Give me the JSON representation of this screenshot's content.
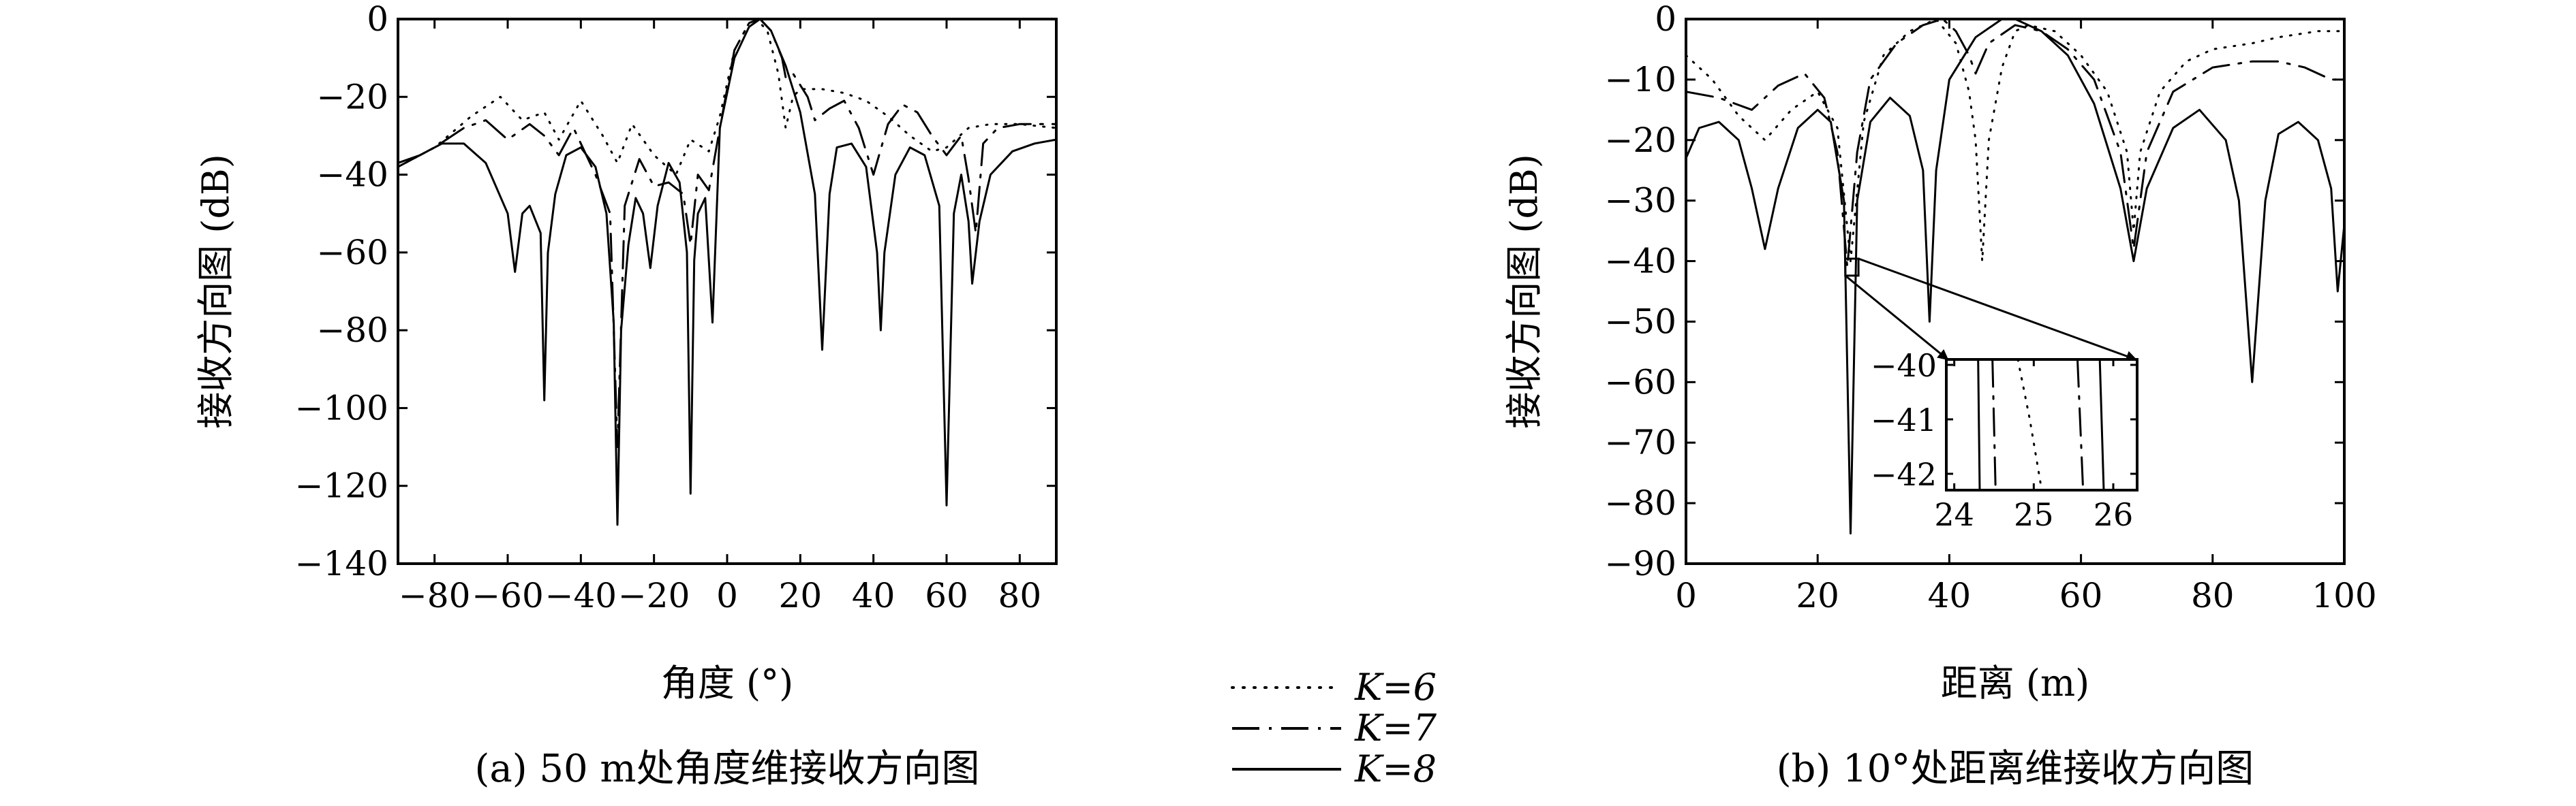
{
  "figure": {
    "captions": [
      "(a) 50 m处角度维接收方向图",
      "(b) 10°处距离维接收方向图"
    ]
  },
  "legend": [
    {
      "label": "K=6",
      "style": "dotted"
    },
    {
      "label": "K=7",
      "style": "dashdot"
    },
    {
      "label": "K=8",
      "style": "solid"
    }
  ],
  "chart_data": [
    {
      "type": "line",
      "caption": "(a) 50 m处角度维接收方向图",
      "xlabel": "角度 (°)",
      "ylabel": "接收方向图 (dB)",
      "xlim": [
        -90,
        90
      ],
      "ylim": [
        -140,
        0
      ],
      "xticks": [
        -80,
        -60,
        -40,
        -20,
        0,
        20,
        40,
        60,
        80
      ],
      "yticks": [
        0,
        -20,
        -40,
        -60,
        -80,
        -100,
        -120,
        -140
      ],
      "grid": false,
      "series": [
        {
          "name": "K=6",
          "style": "dotted",
          "points": [
            [
              -90,
              -38
            ],
            [
              -80,
              -33
            ],
            [
              -70,
              -25
            ],
            [
              -62,
              -20
            ],
            [
              -56,
              -26
            ],
            [
              -50,
              -24
            ],
            [
              -46,
              -31
            ],
            [
              -40,
              -21
            ],
            [
              -34,
              -30
            ],
            [
              -30,
              -37
            ],
            [
              -26,
              -27
            ],
            [
              -20,
              -35
            ],
            [
              -14,
              -40
            ],
            [
              -10,
              -31
            ],
            [
              -5,
              -34
            ],
            [
              -2,
              -25
            ],
            [
              2,
              -8
            ],
            [
              6,
              -1
            ],
            [
              8,
              0
            ],
            [
              11,
              -3
            ],
            [
              14,
              -14
            ],
            [
              16,
              -28
            ],
            [
              18,
              -20
            ],
            [
              20,
              -18
            ],
            [
              26,
              -18
            ],
            [
              32,
              -19
            ],
            [
              38,
              -21
            ],
            [
              44,
              -25
            ],
            [
              50,
              -30
            ],
            [
              56,
              -34
            ],
            [
              60,
              -33
            ],
            [
              66,
              -28
            ],
            [
              72,
              -27
            ],
            [
              80,
              -27
            ],
            [
              90,
              -28
            ]
          ]
        },
        {
          "name": "K=7",
          "style": "dashdot",
          "points": [
            [
              -90,
              -38
            ],
            [
              -80,
              -33
            ],
            [
              -72,
              -28
            ],
            [
              -66,
              -26
            ],
            [
              -60,
              -31
            ],
            [
              -54,
              -27
            ],
            [
              -50,
              -30
            ],
            [
              -46,
              -35
            ],
            [
              -42,
              -28
            ],
            [
              -36,
              -40
            ],
            [
              -32,
              -50
            ],
            [
              -30,
              -110
            ],
            [
              -28,
              -48
            ],
            [
              -24,
              -36
            ],
            [
              -20,
              -43
            ],
            [
              -16,
              -42
            ],
            [
              -12,
              -45
            ],
            [
              -10,
              -58
            ],
            [
              -8,
              -40
            ],
            [
              -5,
              -44
            ],
            [
              -2,
              -28
            ],
            [
              2,
              -8
            ],
            [
              6,
              -1
            ],
            [
              9,
              0
            ],
            [
              12,
              -3
            ],
            [
              15,
              -10
            ],
            [
              16,
              -15
            ],
            [
              18,
              -14
            ],
            [
              22,
              -20
            ],
            [
              24,
              -26
            ],
            [
              28,
              -23
            ],
            [
              32,
              -21
            ],
            [
              36,
              -28
            ],
            [
              40,
              -40
            ],
            [
              44,
              -27
            ],
            [
              48,
              -22
            ],
            [
              52,
              -24
            ],
            [
              56,
              -30
            ],
            [
              60,
              -35
            ],
            [
              64,
              -30
            ],
            [
              66,
              -41
            ],
            [
              68,
              -55
            ],
            [
              70,
              -32
            ],
            [
              74,
              -28
            ],
            [
              80,
              -27
            ],
            [
              90,
              -27
            ]
          ]
        },
        {
          "name": "K=8",
          "style": "solid",
          "points": [
            [
              -90,
              -37
            ],
            [
              -84,
              -35
            ],
            [
              -78,
              -32
            ],
            [
              -72,
              -32
            ],
            [
              -66,
              -37
            ],
            [
              -60,
              -50
            ],
            [
              -58,
              -65
            ],
            [
              -56,
              -50
            ],
            [
              -54,
              -48
            ],
            [
              -51,
              -55
            ],
            [
              -50,
              -98
            ],
            [
              -49,
              -60
            ],
            [
              -47,
              -45
            ],
            [
              -44,
              -35
            ],
            [
              -40,
              -33
            ],
            [
              -36,
              -38
            ],
            [
              -33,
              -50
            ],
            [
              -31,
              -78
            ],
            [
              -30,
              -130
            ],
            [
              -29,
              -80
            ],
            [
              -27,
              -58
            ],
            [
              -25,
              -46
            ],
            [
              -23,
              -50
            ],
            [
              -21,
              -64
            ],
            [
              -19,
              -48
            ],
            [
              -16,
              -37
            ],
            [
              -13,
              -42
            ],
            [
              -11,
              -60
            ],
            [
              -10,
              -122
            ],
            [
              -9,
              -62
            ],
            [
              -8,
              -50
            ],
            [
              -6,
              -46
            ],
            [
              -4,
              -78
            ],
            [
              -2,
              -28
            ],
            [
              2,
              -10
            ],
            [
              6,
              -2
            ],
            [
              9,
              0
            ],
            [
              12,
              -3
            ],
            [
              16,
              -12
            ],
            [
              20,
              -24
            ],
            [
              24,
              -45
            ],
            [
              26,
              -85
            ],
            [
              28,
              -45
            ],
            [
              30,
              -33
            ],
            [
              34,
              -32
            ],
            [
              38,
              -38
            ],
            [
              41,
              -60
            ],
            [
              42,
              -80
            ],
            [
              43,
              -60
            ],
            [
              46,
              -40
            ],
            [
              50,
              -33
            ],
            [
              54,
              -35
            ],
            [
              58,
              -48
            ],
            [
              60,
              -125
            ],
            [
              62,
              -50
            ],
            [
              64,
              -40
            ],
            [
              66,
              -52
            ],
            [
              67,
              -68
            ],
            [
              69,
              -52
            ],
            [
              72,
              -40
            ],
            [
              78,
              -34
            ],
            [
              84,
              -32
            ],
            [
              90,
              -31
            ]
          ]
        }
      ]
    },
    {
      "type": "line",
      "caption": "(b) 10°处距离维接收方向图",
      "xlabel": "距离 (m)",
      "ylabel": "接收方向图 (dB)",
      "xlim": [
        0,
        100
      ],
      "ylim": [
        -90,
        0
      ],
      "xticks": [
        0,
        20,
        40,
        60,
        80,
        100
      ],
      "yticks": [
        0,
        -10,
        -20,
        -30,
        -40,
        -50,
        -60,
        -70,
        -80,
        -90
      ],
      "grid": false,
      "series": [
        {
          "name": "K=6",
          "style": "dotted",
          "points": [
            [
              0,
              -6
            ],
            [
              4,
              -10
            ],
            [
              8,
              -16
            ],
            [
              12,
              -20
            ],
            [
              16,
              -15
            ],
            [
              20,
              -12
            ],
            [
              23,
              -18
            ],
            [
              25,
              -40
            ],
            [
              27,
              -17
            ],
            [
              30,
              -6
            ],
            [
              34,
              -2
            ],
            [
              38,
              0
            ],
            [
              41,
              -4
            ],
            [
              43,
              -12
            ],
            [
              44,
              -20
            ],
            [
              45,
              -40
            ],
            [
              46,
              -20
            ],
            [
              48,
              -8
            ],
            [
              50,
              -2
            ],
            [
              52,
              -1
            ],
            [
              56,
              -2
            ],
            [
              60,
              -6
            ],
            [
              64,
              -12
            ],
            [
              67,
              -22
            ],
            [
              68,
              -35
            ],
            [
              69,
              -22
            ],
            [
              72,
              -12
            ],
            [
              76,
              -7
            ],
            [
              80,
              -5
            ],
            [
              86,
              -4
            ],
            [
              90,
              -3
            ],
            [
              96,
              -2
            ],
            [
              100,
              -2
            ]
          ]
        },
        {
          "name": "K=7",
          "style": "dashdot",
          "points": [
            [
              0,
              -12
            ],
            [
              5,
              -13
            ],
            [
              10,
              -15
            ],
            [
              14,
              -11
            ],
            [
              18,
              -9
            ],
            [
              21,
              -13
            ],
            [
              23,
              -22
            ],
            [
              24.5,
              -41
            ],
            [
              26,
              -22
            ],
            [
              28,
              -10
            ],
            [
              32,
              -4
            ],
            [
              36,
              -1
            ],
            [
              39,
              0
            ],
            [
              41,
              -2
            ],
            [
              43,
              -6
            ],
            [
              44,
              -9
            ],
            [
              46,
              -4
            ],
            [
              50,
              -1
            ],
            [
              54,
              -2
            ],
            [
              58,
              -5
            ],
            [
              62,
              -10
            ],
            [
              66,
              -22
            ],
            [
              68,
              -38
            ],
            [
              70,
              -22
            ],
            [
              74,
              -12
            ],
            [
              80,
              -8
            ],
            [
              86,
              -7
            ],
            [
              90,
              -7
            ],
            [
              94,
              -8
            ],
            [
              98,
              -10
            ],
            [
              100,
              -10
            ]
          ]
        },
        {
          "name": "K=8",
          "style": "solid",
          "points": [
            [
              0,
              -23
            ],
            [
              2,
              -18
            ],
            [
              5,
              -17
            ],
            [
              8,
              -20
            ],
            [
              10,
              -28
            ],
            [
              12,
              -38
            ],
            [
              14,
              -28
            ],
            [
              17,
              -18
            ],
            [
              20,
              -15
            ],
            [
              22,
              -17
            ],
            [
              24,
              -30
            ],
            [
              25,
              -85
            ],
            [
              26,
              -30
            ],
            [
              28,
              -17
            ],
            [
              31,
              -13
            ],
            [
              34,
              -16
            ],
            [
              36,
              -25
            ],
            [
              37,
              -50
            ],
            [
              38,
              -25
            ],
            [
              40,
              -10
            ],
            [
              44,
              -3
            ],
            [
              48,
              0
            ],
            [
              50,
              0
            ],
            [
              54,
              -2
            ],
            [
              58,
              -6
            ],
            [
              62,
              -14
            ],
            [
              66,
              -28
            ],
            [
              68,
              -40
            ],
            [
              70,
              -28
            ],
            [
              74,
              -18
            ],
            [
              78,
              -15
            ],
            [
              82,
              -20
            ],
            [
              84,
              -30
            ],
            [
              86,
              -60
            ],
            [
              88,
              -30
            ],
            [
              90,
              -19
            ],
            [
              93,
              -17
            ],
            [
              96,
              -20
            ],
            [
              98,
              -28
            ],
            [
              99,
              -45
            ],
            [
              100,
              -34
            ]
          ]
        }
      ]
    }
  ],
  "inset": {
    "xlim": [
      23.9,
      26.3
    ],
    "ylim": [
      -42.3,
      -39.9
    ],
    "xticks": [
      24,
      25,
      26
    ],
    "yticks": [
      -40,
      -41,
      -42
    ],
    "source_box": {
      "x": [
        24.2,
        26.2
      ],
      "y": [
        -39.6,
        -42.4
      ]
    },
    "series": [
      {
        "name": "K=6",
        "style": "dotted",
        "points": [
          [
            24.8,
            -39.9
          ],
          [
            24.95,
            -41.0
          ],
          [
            25.1,
            -42.3
          ]
        ]
      },
      {
        "name": "K=7",
        "style": "dashdot",
        "points": [
          [
            24.48,
            -39.9
          ],
          [
            24.52,
            -42.3
          ]
        ]
      },
      {
        "name": "K=7",
        "style": "dashdot",
        "points": [
          [
            25.55,
            -39.9
          ],
          [
            25.62,
            -42.3
          ]
        ]
      },
      {
        "name": "K=8",
        "style": "solid",
        "points": [
          [
            24.3,
            -39.9
          ],
          [
            24.32,
            -42.3
          ]
        ]
      },
      {
        "name": "K=8",
        "style": "solid",
        "points": [
          [
            25.83,
            -39.9
          ],
          [
            25.88,
            -42.3
          ]
        ]
      }
    ]
  }
}
